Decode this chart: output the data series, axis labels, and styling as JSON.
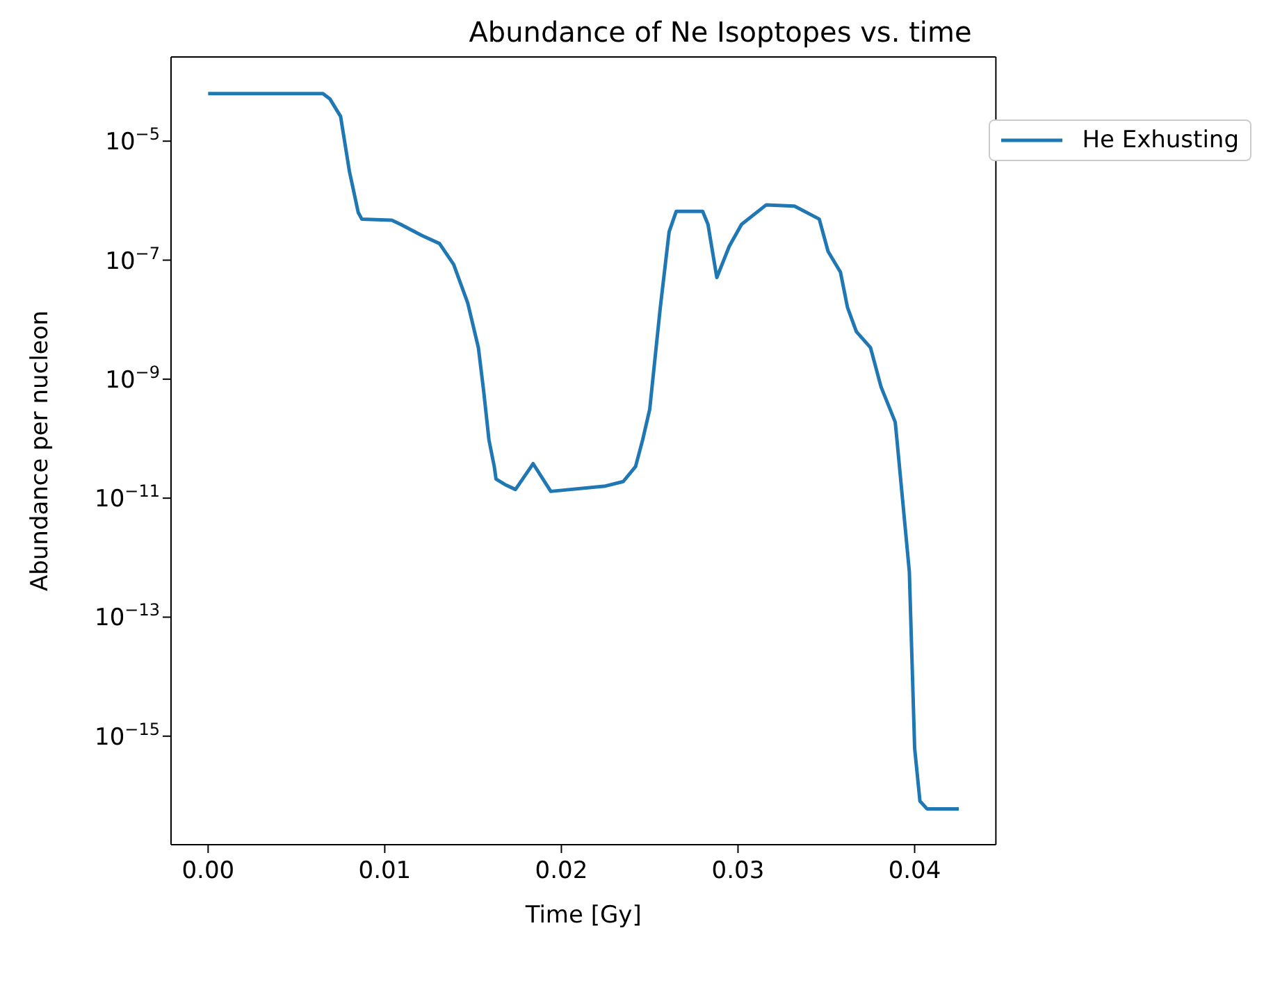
{
  "chart_data": {
    "type": "line",
    "title": "Abundance of Ne Isoptopes vs. time",
    "xlabel": "Time [Gy]",
    "ylabel": "Abundance per nucleon",
    "log": "y",
    "grid": false,
    "legend": "top right",
    "line_style": "solid",
    "marker": "none",
    "xlim": [
      -0.0021,
      0.0446
    ],
    "xticks": [
      {
        "value": 0,
        "label": "0.00"
      },
      {
        "value": 0.01,
        "label": "0.01"
      },
      {
        "value": 0.02,
        "label": "0.02"
      },
      {
        "value": 0.03,
        "label": "0.03"
      },
      {
        "value": 0.04,
        "label": "0.04"
      }
    ],
    "ylim": [
      1.5e-17,
      0.00026
    ],
    "yticks": [
      {
        "value": 1e-15,
        "label": "10$^{−15}$"
      },
      {
        "value": 1e-13,
        "label": "10$^{−13}$"
      },
      {
        "value": 1e-11,
        "label": "10$^{−11}$"
      },
      {
        "value": 1e-09,
        "label": "10$^{−9}$"
      },
      {
        "value": 1e-07,
        "label": "10$^{−7}$"
      },
      {
        "value": 1e-05,
        "label": "10$^{−5}$"
      }
    ],
    "x": [
      0,
      0.0065,
      0.0069,
      0.0075,
      0.008,
      0.0085,
      0.0087,
      0.0104,
      0.0109,
      0.0121,
      0.0131,
      0.0139,
      0.0147,
      0.0153,
      0.0156,
      0.0159,
      0.0162,
      0.0163,
      0.0168,
      0.0174,
      0.0184,
      0.0194,
      0.0225,
      0.0235,
      0.0242,
      0.0246,
      0.025,
      0.0256,
      0.0261,
      0.0265,
      0.028,
      0.0283,
      0.0288,
      0.0295,
      0.0302,
      0.0316,
      0.0332,
      0.0346,
      0.0351,
      0.0358,
      0.0362,
      0.0367,
      0.0375,
      0.0381,
      0.0389,
      0.039,
      0.0397,
      0.04,
      0.0403,
      0.0407,
      0.0425
    ],
    "series": [
      {
        "name": "He Exhusting",
        "color": "#1f77b4",
        "values": [
          6.3e-05,
          6.3e-05,
          5.1e-05,
          2.6e-05,
          3.1e-06,
          6.3e-07,
          4.9e-07,
          4.7e-07,
          4e-07,
          2.6e-07,
          1.9e-07,
          8.5e-08,
          1.9e-08,
          3.4e-09,
          6.3e-10,
          9.5e-11,
          3.4e-11,
          2.1e-11,
          1.7e-11,
          1.4e-11,
          3.8e-11,
          1.3e-11,
          1.6e-11,
          1.9e-11,
          3.4e-11,
          9.5e-11,
          3.1e-10,
          1.6e-08,
          3e-07,
          6.6e-07,
          6.6e-07,
          4e-07,
          5.1e-08,
          1.7e-07,
          4e-07,
          8.5e-07,
          8.1e-07,
          4.9e-07,
          1.4e-07,
          6.3e-08,
          1.6e-08,
          6.3e-09,
          3.4e-09,
          7.4e-10,
          1.9e-10,
          9.5e-11,
          5.8e-13,
          6.3e-16,
          8.1e-17,
          6e-17,
          6e-17
        ]
      }
    ]
  }
}
